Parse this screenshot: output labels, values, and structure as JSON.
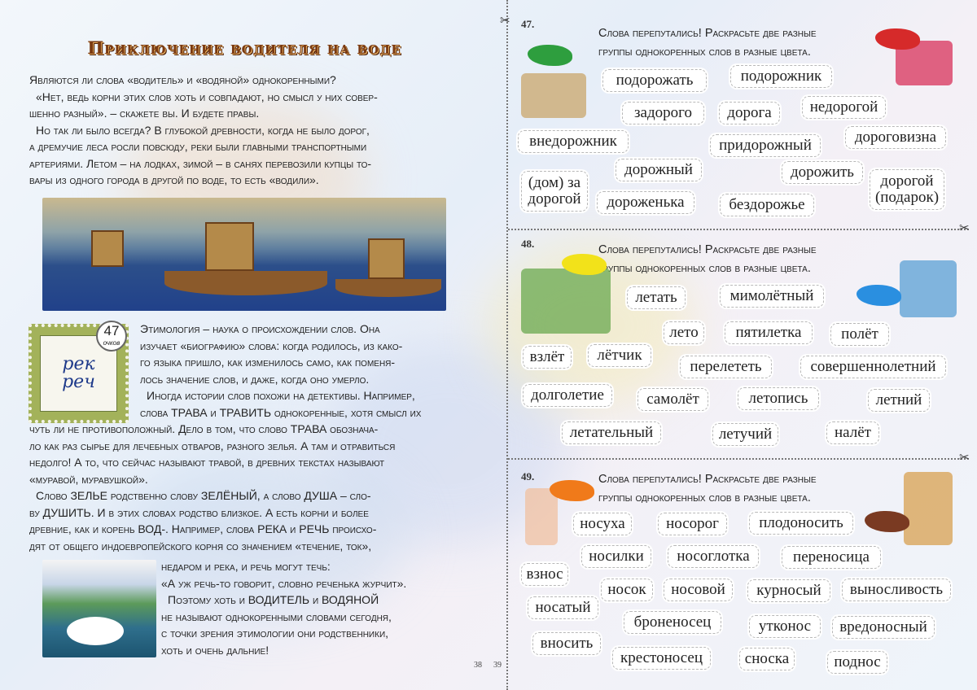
{
  "left": {
    "title": "Приключение водителя на воде",
    "intro": [
      "Являются ли слова «водитель» и «водяной» однокоренными?",
      "«Нет, ведь корни этих слов хоть и совпадают, но смысл у них совер-",
      "шенно разный». – скажете вы. И будете правы.",
      "Но так ли было всегда? В глубокой древности, когда не было дорог,",
      "а дремучие леса росли повсюду, реки были главными транспортными",
      "артериями. Летом – на лодках, зимой – в санях перевозили купцы то-",
      "вары из одного города в другой по воде, то есть «водили»."
    ],
    "stamp": {
      "line1": "рек",
      "line2": "реч",
      "points": "47",
      "points_label": "очков"
    },
    "etym": [
      "Этимология – наука о происхождении слов. Она",
      "изучает «биографию» слова: когда родилось, из како-",
      "го языка пришло, как изменилось само, как поменя-",
      "лось значение слов, и даже, когда оно умерло.",
      "Иногда истории слов похожи на детективы. Например,",
      "слова ТРАВА и ТРАВИТЬ однокоренные, хотя смысл их"
    ],
    "body": [
      "чуть ли не противоположный. Дело в том, что слово ТРАВА обознача-",
      "ло как раз сырье для лечебных отваров, разного зелья. А там и отравиться",
      "недолго! А то, что сейчас называют травой, в древних текстах называют",
      "«муравой, муравушкой».",
      "Слово ЗЕЛЬЕ родственно слову ЗЕЛЁНЫЙ, а слово ДУША – сло-",
      "ву ДУШИТЬ. И в этих словах родство близкое. А есть корни и более",
      "древние, как и корень ВОД-. Например, слова РЕКА и РЕЧЬ происхо-",
      "дят от общего индоевропейского корня со значением «течение, ток»,"
    ],
    "end": [
      "недаром и река, и речь могут течь:",
      "«А уж речь-то говорит, словно реченька журчит».",
      "Поэтому хоть и ВОДИТЕЛЬ и ВОДЯНОЙ",
      "не называют однокоренными словами сегодня,",
      "с точки зрения этимологии они родственники,",
      "хоть и очень дальние!"
    ],
    "page": "38"
  },
  "right": {
    "page": "39",
    "tasks": [
      {
        "num": "47.",
        "line1": "Слова перепутались! Раскрасьте две разные",
        "line2": "группы однокоренных слов в разные цвета.",
        "colors": [
          "#2e9e3e",
          "#d62a2a"
        ],
        "words": [
          "подорожать",
          "подорожник",
          "задорого",
          "дорога",
          "недорогой",
          "внедорожник",
          "придорожный",
          "дороговизна",
          "дорожный",
          "дорожить",
          "(дом) за\nдорогой",
          "дороженька",
          "бездорожье",
          "дорогой\n(подарок)"
        ]
      },
      {
        "num": "48.",
        "line1": "Слова перепутались! Раскрасьте две разные",
        "line2": "группы однокоренных слов в разные цвета.",
        "colors": [
          "#f2e21a",
          "#2a8fe0"
        ],
        "words": [
          "летать",
          "мимолётный",
          "лето",
          "пятилетка",
          "полёт",
          "взлёт",
          "лётчик",
          "перелететь",
          "совершеннолетний",
          "долголетие",
          "самолёт",
          "летопись",
          "летний",
          "летательный",
          "летучий",
          "налёт"
        ]
      },
      {
        "num": "49.",
        "line1": "Слова перепутались! Раскрасьте две разные",
        "line2": "группы однокоренных слов в разные цвета.",
        "colors": [
          "#f07a1a",
          "#7a3a22"
        ],
        "words": [
          "носуха",
          "носорог",
          "плодоносить",
          "носилки",
          "носоглотка",
          "переносица",
          "взнос",
          "носок",
          "носовой",
          "курносый",
          "выносливость",
          "носатый",
          "броненосец",
          "утконос",
          "вредоносный",
          "вносить",
          "крестоносец",
          "сноска",
          "поднос"
        ]
      }
    ]
  }
}
